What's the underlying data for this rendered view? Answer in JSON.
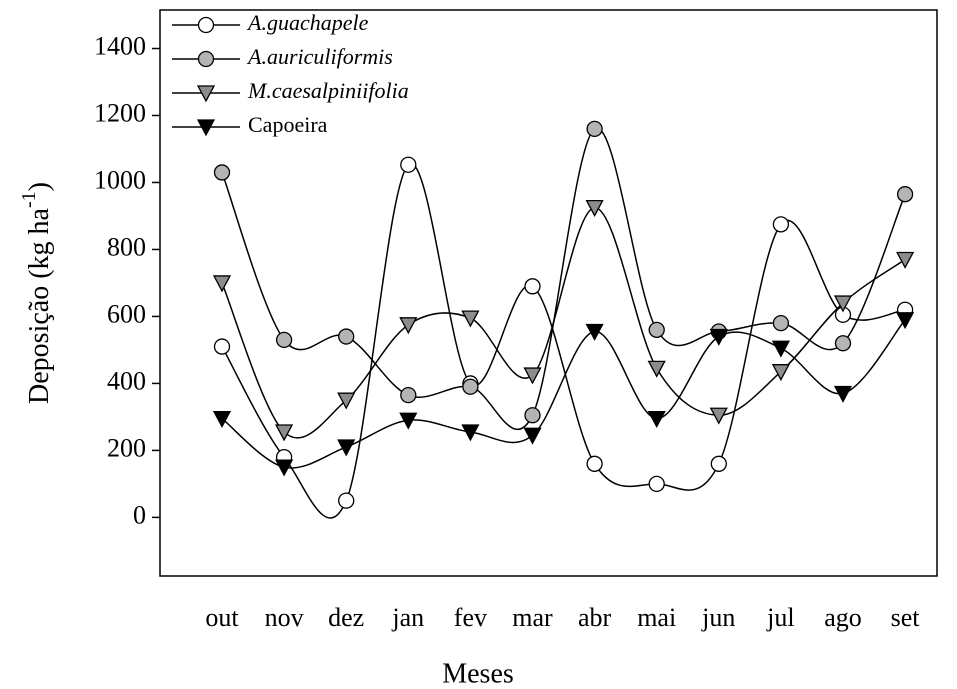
{
  "chart_data": {
    "type": "line",
    "x_label": "Meses",
    "y_label": [
      "Deposição (kg ha",
      "-1",
      ")"
    ],
    "categories": [
      "out",
      "nov",
      "dez",
      "jan",
      "fev",
      "mar",
      "abr",
      "mai",
      "jun",
      "jul",
      "ago",
      "set"
    ],
    "series": [
      {
        "name": "A.guachapele",
        "italic": true,
        "marker": "circle",
        "color": "#ffffff",
        "values": [
          510,
          180,
          50,
          1053,
          400,
          690,
          160,
          100,
          160,
          875,
          605,
          620
        ]
      },
      {
        "name": "A.auriculiformis",
        "italic": true,
        "marker": "circle",
        "color": "#b4b4b4",
        "values": [
          1030,
          530,
          540,
          365,
          390,
          305,
          1160,
          560,
          555,
          580,
          520,
          965
        ]
      },
      {
        "name": "M.caesalpiniifolia",
        "italic": true,
        "marker": "triangle-down",
        "color": "#8c8c8c",
        "values": [
          700,
          255,
          350,
          575,
          595,
          425,
          925,
          445,
          305,
          435,
          640,
          770
        ]
      },
      {
        "name": "Capoeira",
        "italic": false,
        "marker": "triangle-down",
        "color": "#000000",
        "values": [
          295,
          150,
          210,
          290,
          255,
          245,
          555,
          295,
          540,
          505,
          370,
          590
        ]
      }
    ],
    "ylim": [
      -175,
      1515
    ],
    "yticks": [
      0,
      200,
      400,
      600,
      800,
      1000,
      1200,
      1400
    ],
    "grid": false,
    "legend": "upper-left"
  }
}
